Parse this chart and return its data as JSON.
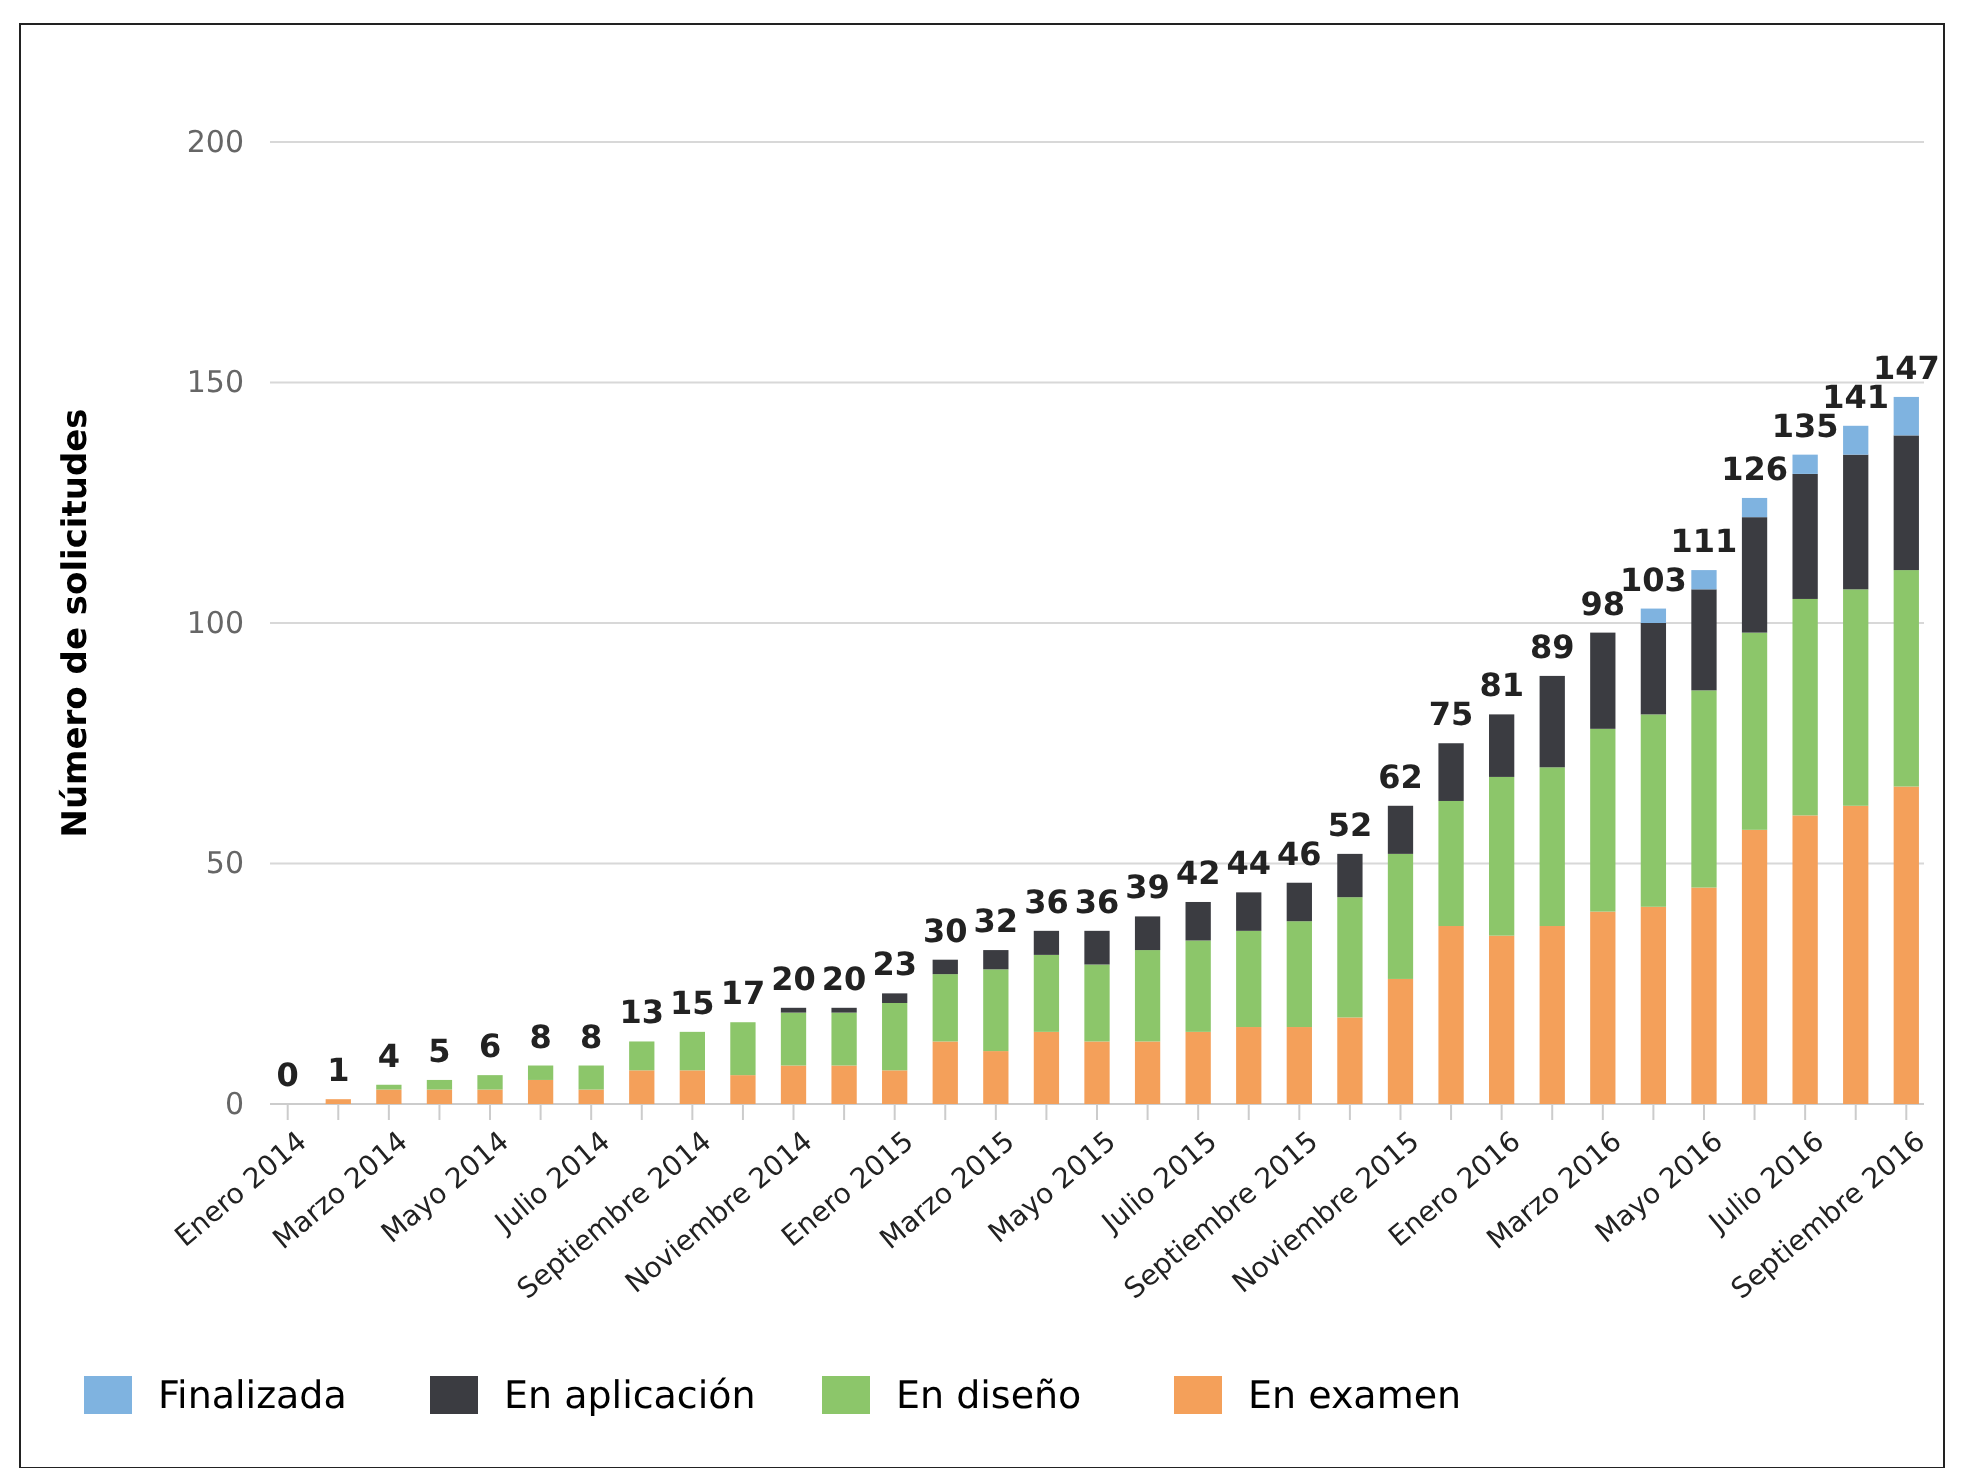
{
  "chart_data": {
    "type": "bar",
    "stacked": true,
    "ylabel": "Número de solicitudes",
    "categories": [
      "Enero 2014",
      null,
      "Marzo 2014",
      null,
      "Mayo 2014",
      null,
      "Julio 2014",
      null,
      "Septiembre 2014",
      null,
      "Noviembre 2014",
      null,
      "Enero 2015",
      null,
      "Marzo 2015",
      null,
      "Mayo 2015",
      null,
      "Julio 2015",
      null,
      "Septiembre 2015",
      null,
      "Noviembre 2015",
      null,
      "Enero 2016",
      null,
      "Marzo 2016",
      null,
      "Mayo 2016",
      null,
      "Julio 2016",
      null,
      "Septiembre 2016"
    ],
    "series": [
      {
        "name": "En examen",
        "color": "#f4a05a",
        "values": [
          0,
          1,
          3,
          3,
          3,
          5,
          3,
          7,
          7,
          6,
          8,
          8,
          7,
          13,
          11,
          15,
          13,
          13,
          15,
          16,
          16,
          18,
          26,
          37,
          35,
          37,
          40,
          41,
          45,
          57,
          60,
          62,
          66
        ]
      },
      {
        "name": "En diseño",
        "color": "#8cc66a",
        "values": [
          0,
          0,
          1,
          2,
          3,
          3,
          5,
          6,
          8,
          11,
          11,
          11,
          14,
          14,
          17,
          16,
          16,
          19,
          19,
          20,
          22,
          25,
          26,
          26,
          33,
          33,
          38,
          40,
          41,
          41,
          45,
          45,
          45
        ]
      },
      {
        "name": "En aplicación",
        "color": "#3b3c41",
        "values": [
          0,
          0,
          0,
          0,
          0,
          0,
          0,
          0,
          0,
          0,
          1,
          1,
          2,
          3,
          4,
          5,
          7,
          7,
          8,
          8,
          8,
          9,
          10,
          12,
          13,
          19,
          20,
          19,
          21,
          24,
          26,
          28,
          28
        ]
      },
      {
        "name": "Finalizada",
        "color": "#7fb3e0",
        "values": [
          0,
          0,
          0,
          0,
          0,
          0,
          0,
          0,
          0,
          0,
          0,
          0,
          0,
          0,
          0,
          0,
          0,
          0,
          0,
          0,
          0,
          0,
          0,
          0,
          0,
          0,
          0,
          3,
          4,
          4,
          4,
          6,
          8
        ]
      }
    ],
    "totals": [
      "0",
      "1",
      "4",
      "5",
      "6",
      "8",
      "8",
      "13",
      "15",
      "17",
      "20",
      "20",
      "23",
      "30",
      "32",
      "36",
      "36",
      "39",
      "42",
      "44",
      "46",
      "52",
      "62",
      "75",
      "81",
      "89",
      "98",
      "103",
      "111",
      "126",
      "135",
      "141",
      "147"
    ],
    "ylim": [
      0,
      200
    ],
    "yticks": [
      0,
      50,
      100,
      150,
      200
    ],
    "grid": "y",
    "legend": "bottom"
  }
}
